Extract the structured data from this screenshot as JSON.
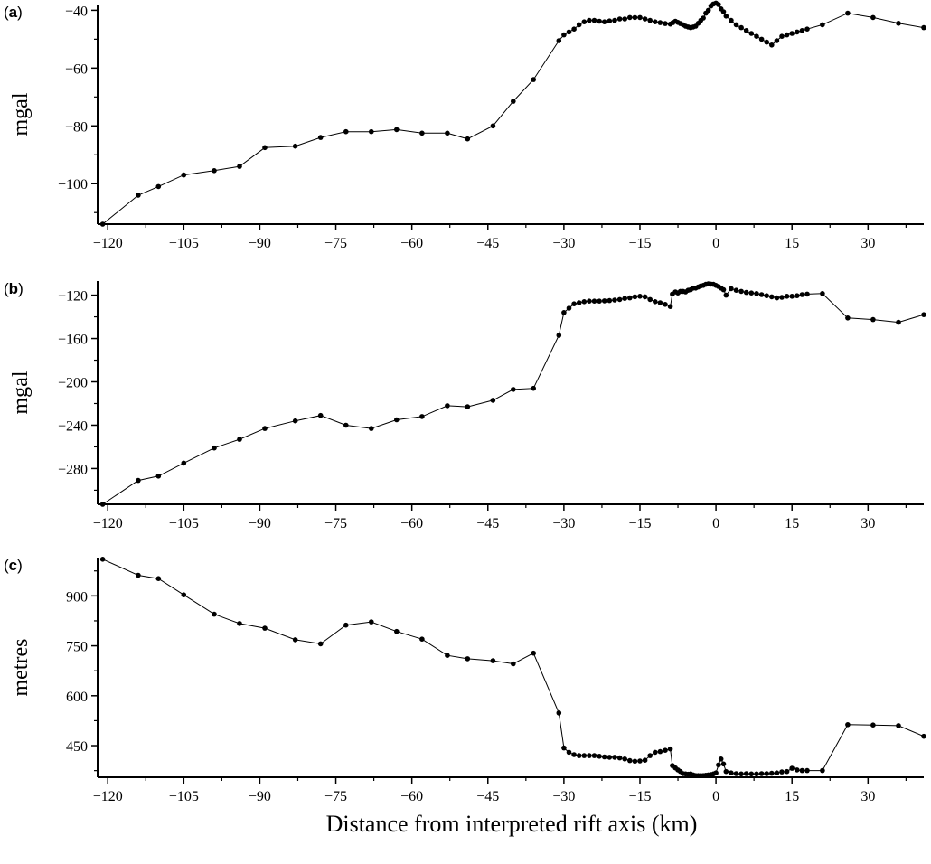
{
  "figure": {
    "xlabel": "Distance from interpreted rift axis (km)",
    "xticks": [
      -120,
      -105,
      -90,
      -75,
      -60,
      -45,
      -30,
      -15,
      0,
      15,
      30
    ]
  },
  "chart_data": [
    {
      "type": "line",
      "panel": "(a)",
      "ylabel": "mgal",
      "xlim": [
        -122,
        41
      ],
      "ylim": [
        -114,
        -38
      ],
      "yticks": [
        -40,
        -60,
        -80,
        -100
      ],
      "yticks_minor": [
        -50,
        -70,
        -90,
        -110
      ],
      "x": [
        -121,
        -114,
        -110,
        -105,
        -99,
        -94,
        -89,
        -83,
        -78,
        -73,
        -68,
        -63,
        -58,
        -53,
        -49,
        -44,
        -40,
        -36,
        -31,
        -30,
        -29,
        -28,
        -27,
        -26,
        -25,
        -24,
        -23,
        -22,
        -21,
        -20,
        -19,
        -18,
        -17,
        -16,
        -15,
        -14,
        -13,
        -12,
        -11,
        -10,
        -9,
        -8.5,
        -8,
        -7.5,
        -7,
        -6.5,
        -6,
        -5.5,
        -5,
        -4.5,
        -4,
        -3.5,
        -3,
        -2.5,
        -2,
        -1.5,
        -1,
        -0.5,
        0,
        0.5,
        1,
        1.5,
        2,
        3,
        4,
        5,
        6,
        7,
        8,
        9,
        10,
        11,
        12,
        13,
        14,
        15,
        16,
        17,
        18,
        21,
        26,
        31,
        36,
        41
      ],
      "y": [
        -114,
        -104,
        -101,
        -97,
        -95.5,
        -94,
        -87.5,
        -87,
        -84,
        -82,
        -82,
        -81.3,
        -82.5,
        -82.5,
        -84.5,
        -80,
        -71.5,
        -64,
        -50.5,
        -48.5,
        -47.5,
        -46.5,
        -45,
        -44,
        -43.5,
        -43.5,
        -43.8,
        -44,
        -43.7,
        -43.5,
        -43,
        -43,
        -42.5,
        -42.5,
        -42.5,
        -43,
        -43.5,
        -44,
        -44.3,
        -44.6,
        -44.8,
        -44.3,
        -43.8,
        -44.2,
        -44.6,
        -45,
        -45.5,
        -45.8,
        -46,
        -45.8,
        -45.5,
        -44.5,
        -43.5,
        -42.7,
        -41,
        -40,
        -38.5,
        -37.8,
        -37.5,
        -38,
        -39.5,
        -40.5,
        -42,
        -43.5,
        -45,
        -46,
        -47,
        -48,
        -49,
        -50,
        -51,
        -52,
        -50.5,
        -49,
        -48.5,
        -48,
        -47.5,
        -47,
        -46.5,
        -45,
        -41,
        -42.5,
        -44.5,
        -46
      ]
    },
    {
      "type": "line",
      "panel": "(b)",
      "ylabel": "mgal",
      "xlim": [
        -122,
        41
      ],
      "ylim": [
        -313,
        -107
      ],
      "yticks": [
        -120,
        -160,
        -200,
        -240,
        -280
      ],
      "yticks_minor": [
        -140,
        -180,
        -220,
        -260,
        -300
      ],
      "x": [
        -121,
        -114,
        -110,
        -105,
        -99,
        -94,
        -89,
        -83,
        -78,
        -73,
        -68,
        -63,
        -58,
        -53,
        -49,
        -44,
        -40,
        -36,
        -31,
        -30,
        -29,
        -28,
        -27,
        -26,
        -25,
        -24,
        -23,
        -22,
        -21,
        -20,
        -19,
        -18,
        -17,
        -16,
        -15,
        -14,
        -13,
        -12,
        -11,
        -10,
        -9,
        -8.6,
        -8,
        -7.5,
        -7,
        -6.5,
        -6,
        -5.5,
        -5,
        -4.5,
        -4,
        -3.5,
        -3,
        -2.5,
        -2,
        -1.5,
        -1,
        -0.5,
        0,
        0.5,
        1,
        1.5,
        2,
        3,
        4,
        5,
        6,
        7,
        8,
        9,
        10,
        11,
        12,
        13,
        14,
        15,
        16,
        17,
        18,
        21,
        26,
        31,
        36,
        41
      ],
      "y": [
        -313,
        -291,
        -287,
        -275,
        -261,
        -253,
        -243,
        -236,
        -231,
        -240,
        -243,
        -235,
        -232,
        -222,
        -223,
        -217,
        -207,
        -206,
        -157,
        -136,
        -132,
        -128,
        -127,
        -126,
        -125.5,
        -125.5,
        -125.5,
        -125.3,
        -125,
        -124.5,
        -124,
        -123,
        -122.5,
        -121.5,
        -121,
        -121.5,
        -124,
        -126,
        -127,
        -128.5,
        -130.5,
        -119,
        -117,
        -118,
        -116.5,
        -116.5,
        -117,
        -115.5,
        -115,
        -113.5,
        -113.5,
        -112.5,
        -111.5,
        -111,
        -110,
        -109.5,
        -109.8,
        -110,
        -111,
        -112,
        -113.5,
        -115,
        -120,
        -114,
        -115.5,
        -116.5,
        -117.5,
        -118,
        -118.5,
        -119.5,
        -120.5,
        -121.5,
        -122.5,
        -122,
        -121,
        -121,
        -120.5,
        -119.5,
        -119,
        -118.5,
        -141,
        -142.5,
        -145,
        -138
      ]
    },
    {
      "type": "line",
      "panel": "(c)",
      "ylabel": "metres",
      "xlim": [
        -122,
        41
      ],
      "ylim": [
        355,
        1015
      ],
      "yticks": [
        900,
        750,
        600,
        450
      ],
      "yticks_minor": [
        975,
        825,
        675,
        525,
        375
      ],
      "x": [
        -121,
        -114,
        -110,
        -105,
        -99,
        -94,
        -89,
        -83,
        -78,
        -73,
        -68,
        -63,
        -58,
        -53,
        -49,
        -44,
        -40,
        -36,
        -31,
        -30,
        -29,
        -28,
        -27,
        -26,
        -25,
        -24,
        -23,
        -22,
        -21,
        -20,
        -19,
        -18,
        -17,
        -16,
        -15,
        -14,
        -13,
        -12,
        -11,
        -10,
        -9,
        -8.6,
        -8,
        -7.5,
        -7,
        -6.5,
        -6,
        -5.5,
        -5,
        -4.5,
        -4,
        -3.5,
        -3,
        -2.5,
        -2,
        -1.5,
        -1,
        -0.5,
        0,
        0.5,
        1,
        1.5,
        2,
        3,
        4,
        5,
        6,
        7,
        8,
        9,
        10,
        11,
        12,
        13,
        14,
        15,
        16,
        17,
        18,
        21,
        26,
        31,
        36,
        41
      ],
      "y": [
        1010,
        962,
        952,
        903,
        845,
        817,
        803,
        768,
        756,
        812,
        822,
        793,
        770,
        721,
        711,
        705,
        696,
        728,
        548,
        443,
        430,
        423,
        420,
        420,
        420,
        420,
        418,
        416,
        415,
        415,
        413,
        410,
        405,
        403,
        404,
        406,
        420,
        430,
        432,
        436,
        440,
        390,
        383,
        377,
        372,
        366,
        365,
        364,
        365,
        362,
        360,
        360,
        360,
        360,
        361,
        362,
        363,
        365,
        368,
        392,
        410,
        395,
        372,
        368,
        366,
        365,
        366,
        365,
        365,
        366,
        366,
        367,
        368,
        371,
        372,
        382,
        377,
        375,
        375,
        375,
        513,
        512,
        510,
        478
      ]
    }
  ]
}
